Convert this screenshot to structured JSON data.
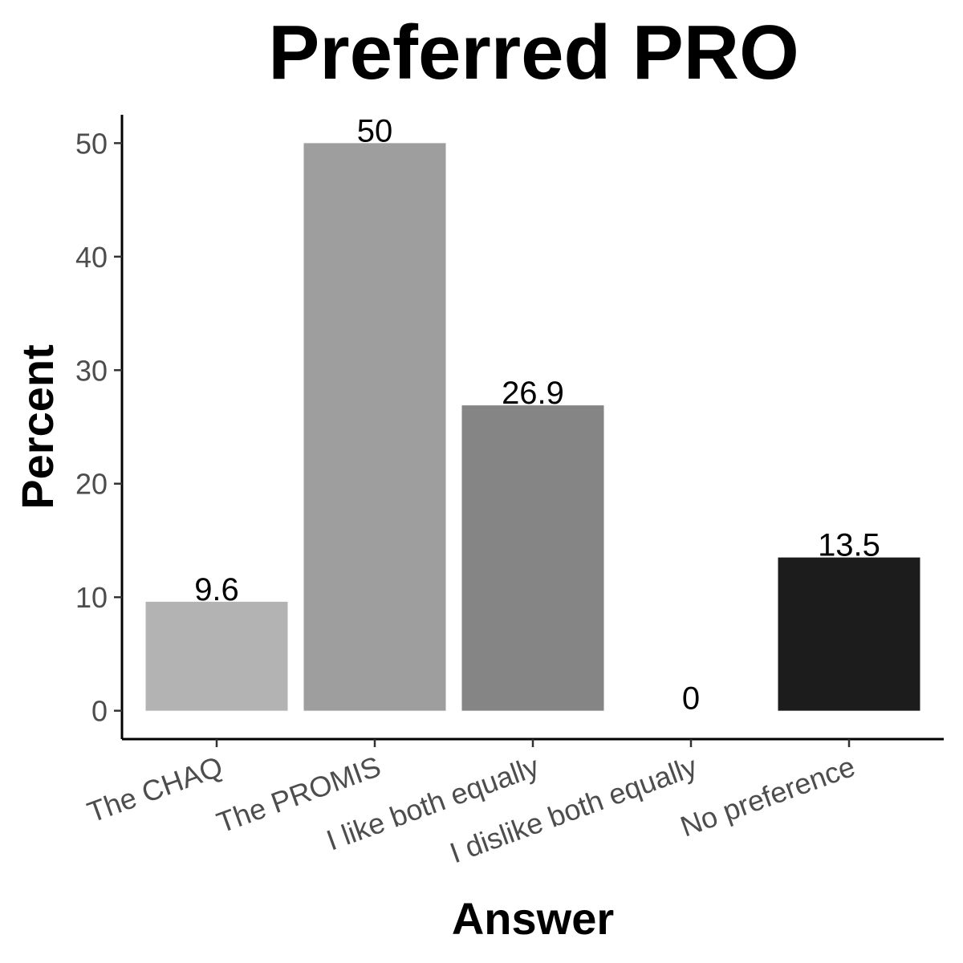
{
  "chart_data": {
    "type": "bar",
    "title": "Preferred PRO",
    "xlabel": "Answer",
    "ylabel": "Percent",
    "categories": [
      "The CHAQ",
      "The PROMIS",
      "I like both equally",
      "I dislike both equally",
      "No preference"
    ],
    "values": [
      9.6,
      50,
      26.9,
      0,
      13.5
    ],
    "value_labels": [
      "9.6",
      "50",
      "26.9",
      "0",
      "13.5"
    ],
    "colors": [
      "#b3b3b3",
      "#9e9e9e",
      "#858585",
      "#5c5c5c",
      "#1c1c1c"
    ],
    "yticks": [
      0,
      10,
      20,
      30,
      40,
      50
    ],
    "ylim": [
      -2.5,
      52.5
    ],
    "grid": false,
    "legend": "none"
  }
}
